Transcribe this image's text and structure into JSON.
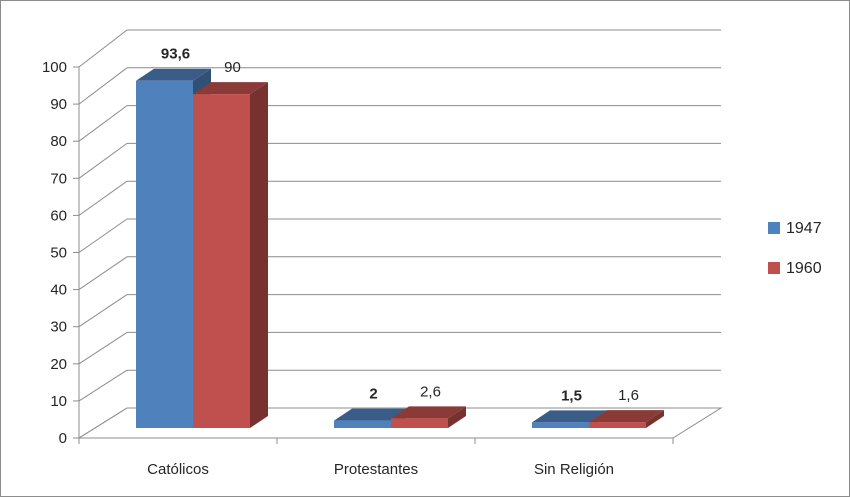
{
  "chart_data": {
    "type": "bar",
    "categories": [
      "Católicos",
      "Protestantes",
      "Sin Religión"
    ],
    "series": [
      {
        "name": "1947",
        "values": [
          93.6,
          2,
          1.5
        ],
        "labels": [
          "93,6",
          "2",
          "1,5"
        ],
        "color": "#4f81bd",
        "label_bold": true
      },
      {
        "name": "1960",
        "values": [
          90,
          2.6,
          1.6
        ],
        "labels": [
          "90",
          "2,6",
          "1,6"
        ],
        "color": "#c0504d",
        "label_bold": false
      }
    ],
    "ylim": [
      0,
      100
    ],
    "yticks": [
      0,
      10,
      20,
      30,
      40,
      50,
      60,
      70,
      80,
      90,
      100
    ],
    "ytick_labels": [
      "0",
      "10",
      "20",
      "30",
      "40",
      "50",
      "60",
      "70",
      "80",
      "90",
      "100"
    ],
    "grid": true,
    "legend_position": "right",
    "style": "3d-clustered-column"
  }
}
